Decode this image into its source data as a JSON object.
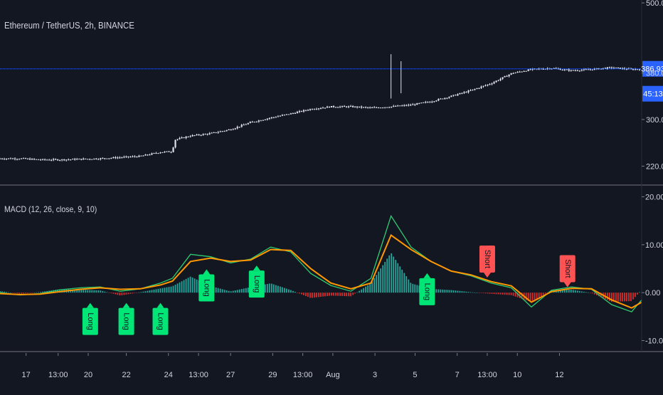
{
  "price_pane": {
    "title": "Ethereum / TetherUS, 2h, BINANCE",
    "last_price_label": "386.93",
    "countdown_label": "45:13",
    "y_ticks": [
      {
        "value": 500,
        "label": "500.00"
      },
      {
        "value": 380,
        "label": "380.00"
      },
      {
        "value": 300,
        "label": "300.00"
      },
      {
        "value": 220,
        "label": "220.00"
      }
    ]
  },
  "macd_pane": {
    "title": "MACD (12, 26, close, 9, 10)",
    "y_ticks": [
      {
        "value": 20,
        "label": "20.00"
      },
      {
        "value": 10,
        "label": "10.00"
      },
      {
        "value": 0,
        "label": "0.00"
      },
      {
        "value": -10,
        "label": "-10.00"
      }
    ]
  },
  "x_axis": {
    "labels": [
      "17",
      "13:00",
      "20",
      "22",
      "24",
      "13:00",
      "27",
      "29",
      "13:00",
      "Aug",
      "3",
      "5",
      "7",
      "13:00",
      "10",
      "12"
    ]
  },
  "colors": {
    "background": "#131722",
    "candle": "#e0e3eb",
    "last_price_line": "#2962ff",
    "price_label_bg": "#2962ff",
    "macd_line": "#26a69a",
    "macd_line_bright": "#2ecc71",
    "signal_line": "#ff9800",
    "hist_positive": "#26a69a",
    "hist_negative": "#d32f2f",
    "long_marker": "#00e676",
    "short_marker": "#ff5252",
    "axis_text": "#d1d4dc",
    "separator": "#434651"
  },
  "chart_data": [
    {
      "type": "candlestick",
      "title": "Ethereum / TetherUS, 2h, BINANCE",
      "ylim": [
        190,
        505
      ],
      "x_labels": [
        "17",
        "13:00",
        "20",
        "22",
        "24",
        "13:00",
        "27",
        "29",
        "13:00",
        "Aug",
        "3",
        "5",
        "7",
        "13:00",
        "10",
        "12"
      ],
      "close_path": [
        {
          "x": 0,
          "y": 233
        },
        {
          "x": 10,
          "y": 233
        },
        {
          "x": 20,
          "y": 231
        },
        {
          "x": 30,
          "y": 231
        },
        {
          "x": 40,
          "y": 232
        },
        {
          "x": 50,
          "y": 233
        },
        {
          "x": 60,
          "y": 235
        },
        {
          "x": 70,
          "y": 237
        },
        {
          "x": 80,
          "y": 244
        },
        {
          "x": 86,
          "y": 245
        },
        {
          "x": 87,
          "y": 265
        },
        {
          "x": 95,
          "y": 272
        },
        {
          "x": 105,
          "y": 276
        },
        {
          "x": 115,
          "y": 283
        },
        {
          "x": 125,
          "y": 295
        },
        {
          "x": 135,
          "y": 303
        },
        {
          "x": 145,
          "y": 310
        },
        {
          "x": 155,
          "y": 318
        },
        {
          "x": 165,
          "y": 322
        },
        {
          "x": 175,
          "y": 322
        },
        {
          "x": 185,
          "y": 320
        },
        {
          "x": 195,
          "y": 322
        },
        {
          "x": 205,
          "y": 325
        },
        {
          "x": 215,
          "y": 331
        },
        {
          "x": 225,
          "y": 340
        },
        {
          "x": 235,
          "y": 350
        },
        {
          "x": 245,
          "y": 362
        },
        {
          "x": 255,
          "y": 379
        },
        {
          "x": 265,
          "y": 386
        },
        {
          "x": 275,
          "y": 388
        },
        {
          "x": 285,
          "y": 384
        },
        {
          "x": 295,
          "y": 386
        },
        {
          "x": 305,
          "y": 389
        },
        {
          "x": 315,
          "y": 386
        },
        {
          "x": 325,
          "y": 387
        },
        {
          "x": 335,
          "y": 376
        },
        {
          "x": 345,
          "y": 383
        },
        {
          "x": 355,
          "y": 386
        },
        {
          "x": 365,
          "y": 382
        },
        {
          "x": 375,
          "y": 384
        },
        {
          "x": 385,
          "y": 385
        },
        {
          "x": 395,
          "y": 386
        },
        {
          "x": 405,
          "y": 383
        },
        {
          "x": 415,
          "y": 382
        },
        {
          "x": 425,
          "y": 378
        },
        {
          "x": 435,
          "y": 380
        },
        {
          "x": 445,
          "y": 382
        },
        {
          "x": 455,
          "y": 384
        },
        {
          "x": 465,
          "y": 385
        },
        {
          "x": 475,
          "y": 383
        },
        {
          "x": 485,
          "y": 382
        },
        {
          "x": 495,
          "y": 380
        },
        {
          "x": 505,
          "y": 378
        },
        {
          "x": 515,
          "y": 380
        },
        {
          "x": 525,
          "y": 382
        },
        {
          "x": 535,
          "y": 384
        },
        {
          "x": 545,
          "y": 385
        },
        {
          "x": 555,
          "y": 384
        },
        {
          "x": 565,
          "y": 380
        },
        {
          "x": 575,
          "y": 383
        }
      ],
      "wicks": [
        {
          "x": 195,
          "high": 412,
          "low": 336
        },
        {
          "x": 200,
          "high": 400,
          "low": 345
        }
      ]
    },
    {
      "type": "line",
      "title": "MACD (12, 26, close, 9, 10)",
      "ylim": [
        -12,
        22
      ],
      "series": [
        {
          "role": "macd",
          "points": [
            {
              "x": 0,
              "y": 0.0
            },
            {
              "x": 10,
              "y": -0.5
            },
            {
              "x": 20,
              "y": -0.2
            },
            {
              "x": 30,
              "y": 0.6
            },
            {
              "x": 40,
              "y": 1.0
            },
            {
              "x": 50,
              "y": 1.2
            },
            {
              "x": 60,
              "y": 0.3
            },
            {
              "x": 70,
              "y": 0.8
            },
            {
              "x": 80,
              "y": 2.0
            },
            {
              "x": 86,
              "y": 3.0
            },
            {
              "x": 95,
              "y": 8.0
            },
            {
              "x": 105,
              "y": 7.5
            },
            {
              "x": 115,
              "y": 6.2
            },
            {
              "x": 125,
              "y": 7.0
            },
            {
              "x": 135,
              "y": 9.5
            },
            {
              "x": 145,
              "y": 8.5
            },
            {
              "x": 155,
              "y": 4.0
            },
            {
              "x": 165,
              "y": 1.5
            },
            {
              "x": 175,
              "y": 0.3
            },
            {
              "x": 185,
              "y": 3.0
            },
            {
              "x": 195,
              "y": 16.0
            },
            {
              "x": 205,
              "y": 9.5
            },
            {
              "x": 215,
              "y": 6.5
            },
            {
              "x": 225,
              "y": 4.5
            },
            {
              "x": 235,
              "y": 3.5
            },
            {
              "x": 245,
              "y": 2.0
            },
            {
              "x": 255,
              "y": 1.0
            },
            {
              "x": 265,
              "y": -3.0
            },
            {
              "x": 275,
              "y": 0.5
            },
            {
              "x": 285,
              "y": 1.2
            },
            {
              "x": 295,
              "y": 0.7
            },
            {
              "x": 305,
              "y": -2.5
            },
            {
              "x": 315,
              "y": -4.0
            },
            {
              "x": 320,
              "y": -1.5
            }
          ]
        },
        {
          "role": "signal",
          "points": [
            {
              "x": 0,
              "y": -0.2
            },
            {
              "x": 10,
              "y": -0.4
            },
            {
              "x": 20,
              "y": -0.3
            },
            {
              "x": 30,
              "y": 0.2
            },
            {
              "x": 40,
              "y": 0.7
            },
            {
              "x": 50,
              "y": 1.0
            },
            {
              "x": 60,
              "y": 0.7
            },
            {
              "x": 70,
              "y": 0.8
            },
            {
              "x": 80,
              "y": 1.6
            },
            {
              "x": 86,
              "y": 2.4
            },
            {
              "x": 95,
              "y": 6.5
            },
            {
              "x": 105,
              "y": 7.2
            },
            {
              "x": 115,
              "y": 6.5
            },
            {
              "x": 125,
              "y": 6.8
            },
            {
              "x": 135,
              "y": 9.0
            },
            {
              "x": 145,
              "y": 8.8
            },
            {
              "x": 155,
              "y": 5.0
            },
            {
              "x": 165,
              "y": 2.0
            },
            {
              "x": 175,
              "y": 0.8
            },
            {
              "x": 185,
              "y": 2.0
            },
            {
              "x": 195,
              "y": 12.0
            },
            {
              "x": 205,
              "y": 9.0
            },
            {
              "x": 215,
              "y": 6.5
            },
            {
              "x": 225,
              "y": 4.5
            },
            {
              "x": 235,
              "y": 3.7
            },
            {
              "x": 245,
              "y": 2.3
            },
            {
              "x": 255,
              "y": 1.4
            },
            {
              "x": 265,
              "y": -2.0
            },
            {
              "x": 275,
              "y": 0.2
            },
            {
              "x": 285,
              "y": 0.9
            },
            {
              "x": 295,
              "y": 0.8
            },
            {
              "x": 305,
              "y": -1.5
            },
            {
              "x": 315,
              "y": -3.2
            },
            {
              "x": 320,
              "y": -2.0
            }
          ]
        }
      ],
      "signals": [
        {
          "label": "Long",
          "side": "long",
          "x": 45,
          "y": -2.0
        },
        {
          "label": "Long",
          "side": "long",
          "x": 63,
          "y": -2.0
        },
        {
          "label": "Long",
          "side": "long",
          "x": 80,
          "y": -2.0
        },
        {
          "label": "Long",
          "side": "long",
          "x": 103,
          "y": 5.0
        },
        {
          "label": "Long",
          "side": "long",
          "x": 128,
          "y": 5.8
        },
        {
          "label": "Long",
          "side": "long",
          "x": 213,
          "y": 4.2
        },
        {
          "label": "Short",
          "side": "short",
          "x": 243,
          "y": 3.0
        },
        {
          "label": "Short",
          "side": "short",
          "x": 283,
          "y": 1.0
        }
      ]
    }
  ]
}
